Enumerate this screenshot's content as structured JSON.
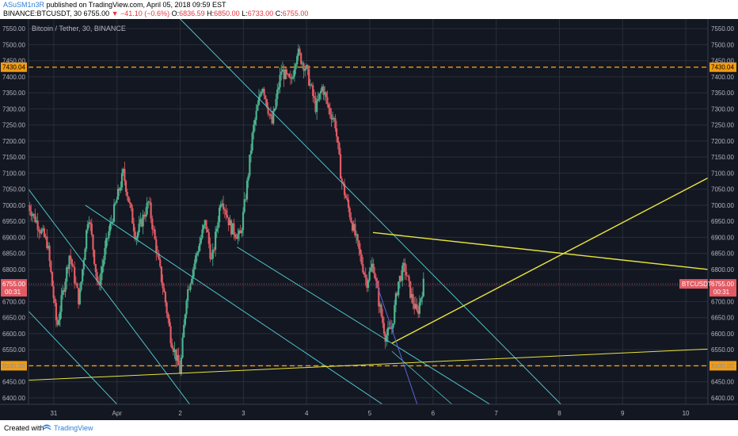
{
  "header": {
    "author": "ASuSM1n3R",
    "published": "published on TradingView.com, April 05, 2018 09:59 EST",
    "symbol": "BINANCE:BTCUSDT, 30",
    "last": "6755.00",
    "change": "▼ −41.10 (−0.6%)",
    "o_label": "O:",
    "o": "6836.59",
    "h_label": "H:",
    "h": "6850.00",
    "l_label": "L:",
    "l": "6733.00",
    "c_label": "C:",
    "c": "6755.00"
  },
  "footer": {
    "created_with": "Created with",
    "brand": "TradingView"
  },
  "colors": {
    "background": "#131722",
    "grid": "#2a2e39",
    "up": "#4bb38e",
    "down": "#e15b64",
    "cyan": "#4fc3c8",
    "yellow": "#e8e43c",
    "orange": "#f39c12",
    "blue": "#5a66d6",
    "axis_text": "#b2b5be"
  },
  "chart_data": {
    "type": "candlestick",
    "title": "Bitcoin / Tether, 30, BINANCE",
    "ylim": [
      6380,
      7580
    ],
    "y_ticks": [
      6400,
      6450,
      6500,
      6550,
      6600,
      6650,
      6700,
      6750,
      6800,
      6850,
      6900,
      6950,
      7000,
      7050,
      7100,
      7150,
      7200,
      7250,
      7300,
      7350,
      7400,
      7450,
      7500,
      7550
    ],
    "x_ticks": [
      {
        "t": 0.7,
        "label": "31"
      },
      {
        "t": 1.7,
        "label": "Apr"
      },
      {
        "t": 2.7,
        "label": "2"
      },
      {
        "t": 3.7,
        "label": "3"
      },
      {
        "t": 4.7,
        "label": "4"
      },
      {
        "t": 5.7,
        "label": "5"
      },
      {
        "t": 6.7,
        "label": "6"
      },
      {
        "t": 7.7,
        "label": "7"
      },
      {
        "t": 8.7,
        "label": "8"
      },
      {
        "t": 9.7,
        "label": "9"
      },
      {
        "t": 10.7,
        "label": "10"
      }
    ],
    "x_range": [
      0.3,
      11.05
    ],
    "last_price": {
      "value": 6755.0,
      "label": "6755.00",
      "countdown": "00:31",
      "symbol_tag": "BTCUSDT"
    },
    "horizontal_levels": [
      {
        "price": 7430.04,
        "label": "7430.04"
      },
      {
        "price": 6500.0,
        "label": "6500.00"
      }
    ],
    "anchor_points": [
      {
        "t": 0.3,
        "price": 7000
      },
      {
        "t": 0.6,
        "price": 6880
      },
      {
        "t": 0.75,
        "price": 6620
      },
      {
        "t": 0.95,
        "price": 6850
      },
      {
        "t": 1.1,
        "price": 6700
      },
      {
        "t": 1.25,
        "price": 6980
      },
      {
        "t": 1.4,
        "price": 6740
      },
      {
        "t": 1.55,
        "price": 6900
      },
      {
        "t": 1.8,
        "price": 7100
      },
      {
        "t": 2.0,
        "price": 6900
      },
      {
        "t": 2.2,
        "price": 7010
      },
      {
        "t": 2.35,
        "price": 6830
      },
      {
        "t": 2.45,
        "price": 6720
      },
      {
        "t": 2.55,
        "price": 6590
      },
      {
        "t": 2.7,
        "price": 6480
      },
      {
        "t": 2.8,
        "price": 6720
      },
      {
        "t": 2.95,
        "price": 6840
      },
      {
        "t": 3.1,
        "price": 6950
      },
      {
        "t": 3.2,
        "price": 6820
      },
      {
        "t": 3.35,
        "price": 7030
      },
      {
        "t": 3.5,
        "price": 6930
      },
      {
        "t": 3.65,
        "price": 6900
      },
      {
        "t": 3.75,
        "price": 7050
      },
      {
        "t": 3.85,
        "price": 7230
      },
      {
        "t": 4.0,
        "price": 7380
      },
      {
        "t": 4.15,
        "price": 7250
      },
      {
        "t": 4.3,
        "price": 7420
      },
      {
        "t": 4.45,
        "price": 7380
      },
      {
        "t": 4.55,
        "price": 7480
      },
      {
        "t": 4.7,
        "price": 7420
      },
      {
        "t": 4.85,
        "price": 7300
      },
      {
        "t": 4.95,
        "price": 7370
      },
      {
        "t": 5.05,
        "price": 7300
      },
      {
        "t": 5.15,
        "price": 7260
      },
      {
        "t": 5.25,
        "price": 7080
      },
      {
        "t": 5.35,
        "price": 7000
      },
      {
        "t": 5.5,
        "price": 6880
      },
      {
        "t": 5.65,
        "price": 6760
      },
      {
        "t": 5.75,
        "price": 6820
      },
      {
        "t": 5.85,
        "price": 6690
      },
      {
        "t": 5.95,
        "price": 6590
      },
      {
        "t": 6.05,
        "price": 6620
      },
      {
        "t": 6.15,
        "price": 6760
      },
      {
        "t": 6.25,
        "price": 6810
      },
      {
        "t": 6.35,
        "price": 6720
      },
      {
        "t": 6.45,
        "price": 6660
      },
      {
        "t": 6.55,
        "price": 6755
      }
    ],
    "trend_lines": [
      {
        "color": "cyan",
        "width": 1,
        "points": [
          [
            0.3,
            7050
          ],
          [
            2.85,
            6380
          ]
        ]
      },
      {
        "color": "cyan",
        "width": 1,
        "points": [
          [
            0.3,
            6670
          ],
          [
            1.7,
            6380
          ]
        ]
      },
      {
        "color": "cyan",
        "width": 1,
        "points": [
          [
            1.2,
            7000
          ],
          [
            5.9,
            6380
          ]
        ]
      },
      {
        "color": "cyan",
        "width": 1,
        "points": [
          [
            3.6,
            6870
          ],
          [
            7.6,
            6380
          ]
        ]
      },
      {
        "color": "cyan",
        "width": 1,
        "points": [
          [
            2.6,
            7600
          ],
          [
            8.75,
            6375
          ]
        ]
      },
      {
        "color": "cyan",
        "width": 0.8,
        "points": [
          [
            6.05,
            6545
          ],
          [
            7.0,
            6380
          ]
        ]
      },
      {
        "color": "yellow",
        "width": 1,
        "points": [
          [
            0.3,
            6455
          ],
          [
            11.05,
            6552
          ]
        ]
      },
      {
        "color": "yellow",
        "width": 1.4,
        "points": [
          [
            5.75,
            6915
          ],
          [
            11.05,
            6800
          ]
        ]
      },
      {
        "color": "yellow",
        "width": 1.4,
        "points": [
          [
            6.05,
            6570
          ],
          [
            11.05,
            7085
          ]
        ]
      },
      {
        "color": "blue",
        "width": 1,
        "points": [
          [
            5.8,
            6760
          ],
          [
            6.45,
            6380
          ]
        ]
      }
    ]
  }
}
